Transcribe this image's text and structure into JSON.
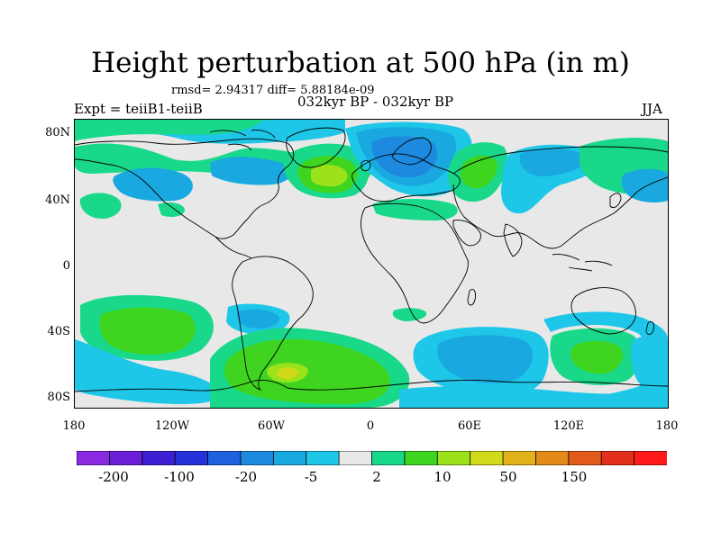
{
  "title": "Height perturbation at 500 hPa (in m)",
  "stats": "rmsd= 2.94317 diff= 5.88184e-09",
  "experiment": "Expt = teiiB1-teiiB",
  "period": "032kyr BP - 032kyr BP",
  "season": "JJA",
  "lat_labels": [
    "80N",
    "40N",
    "0",
    "40S",
    "80S"
  ],
  "lon_labels": [
    "180",
    "120W",
    "60W",
    "0",
    "60E",
    "120E",
    "180"
  ],
  "colorbar": {
    "colors": [
      "#8a2be2",
      "#6a1fd6",
      "#3e1fd3",
      "#2331d8",
      "#1f5fe0",
      "#1d8ae0",
      "#19a9e0",
      "#1ec6e8",
      "#e8e8e8",
      "#19d88a",
      "#3ed41f",
      "#9be21a",
      "#d2d81a",
      "#e2b21a",
      "#e28a1a",
      "#e25a1a",
      "#e2301a",
      "#ff1a1a"
    ],
    "labels": [
      "-200",
      "-100",
      "-20",
      "-5",
      "2",
      "10",
      "50",
      "150"
    ]
  },
  "palette": {
    "background": "#e8e8e8",
    "cyan": "#1ec6e8",
    "sky": "#19a9e0",
    "blue": "#1d8ae0",
    "teal": "#19d88a",
    "green": "#3ed41f",
    "lime": "#9be21a",
    "yellow": "#d2d81a"
  }
}
